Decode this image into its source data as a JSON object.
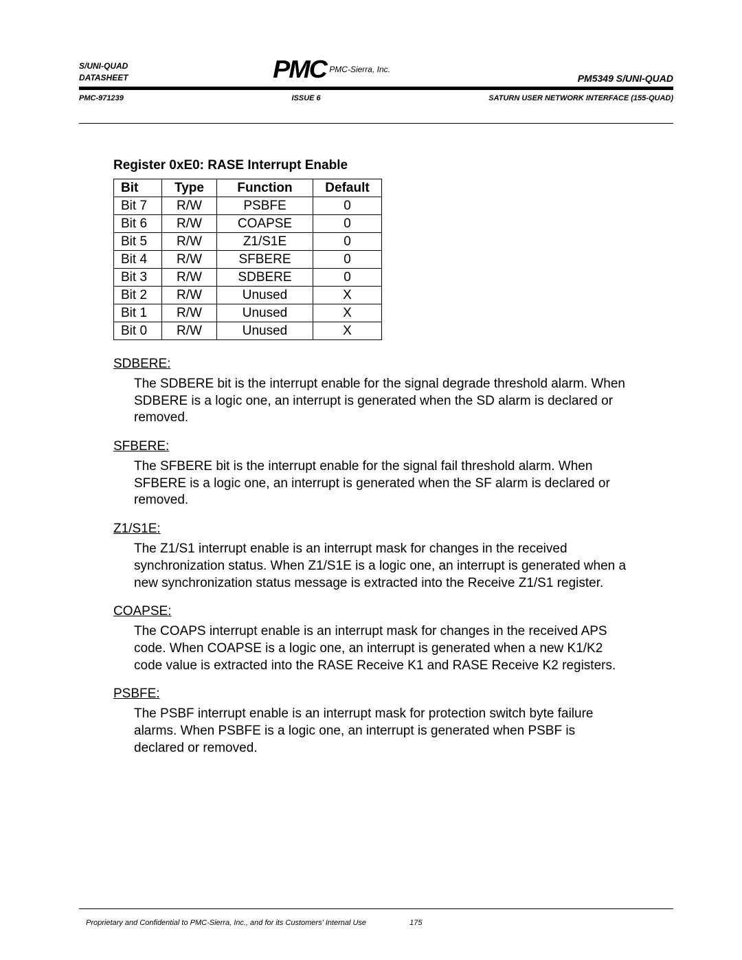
{
  "header": {
    "left_line1": "S/UNI-QUAD",
    "left_line2": "DATASHEET",
    "company": "PMC-Sierra, Inc.",
    "right": "PM5349 S/UNI-QUAD",
    "sub_left": "PMC-971239",
    "sub_center": "ISSUE 6",
    "sub_right": "SATURN USER NETWORK INTERFACE (155-QUAD)"
  },
  "register": {
    "title": "Register 0xE0: RASE Interrupt Enable",
    "columns": [
      "Bit",
      "Type",
      "Function",
      "Default"
    ],
    "rows": [
      [
        "Bit 7",
        "R/W",
        "PSBFE",
        "0"
      ],
      [
        "Bit 6",
        "R/W",
        "COAPSE",
        "0"
      ],
      [
        "Bit 5",
        "R/W",
        "Z1/S1E",
        "0"
      ],
      [
        "Bit 4",
        "R/W",
        "SFBERE",
        "0"
      ],
      [
        "Bit 3",
        "R/W",
        "SDBERE",
        "0"
      ],
      [
        "Bit 2",
        "R/W",
        "Unused",
        "X"
      ],
      [
        "Bit 1",
        "R/W",
        "Unused",
        "X"
      ],
      [
        "Bit 0",
        "R/W",
        "Unused",
        "X"
      ]
    ]
  },
  "sections": [
    {
      "term": "SDBERE:",
      "desc": "The SDBERE bit is the interrupt enable for the signal degrade threshold alarm.  When SDBERE is a logic one, an interrupt is generated when the SD alarm is declared or removed."
    },
    {
      "term": "SFBERE:",
      "desc": "The SFBERE bit is the interrupt enable for the signal fail threshold alarm.  When SFBERE is a logic one, an interrupt is generated when the SF alarm is declared or removed."
    },
    {
      "term": "Z1/S1E:",
      "desc": "The Z1/S1 interrupt enable is an interrupt mask for changes in the received synchronization status.  When Z1/S1E is a logic one, an interrupt is generated when a new synchronization status message is extracted into the Receive Z1/S1 register."
    },
    {
      "term": "COAPSE:",
      "desc": "The COAPS interrupt enable is an interrupt mask for changes in the received APS code.  When COAPSE is a logic one, an interrupt is generated when a new K1/K2 code value is extracted into the RASE Receive  K1 and RASE Receive K2 registers."
    },
    {
      "term": "PSBFE:",
      "desc": "The PSBF interrupt enable is an interrupt mask for protection switch byte failure alarms.  When PSBFE is a logic one, an interrupt is generated when PSBF is declared or removed."
    }
  ],
  "footer": {
    "text": "Proprietary and Confidential to PMC-Sierra, Inc., and for its Customers' Internal Use",
    "page": "175"
  }
}
